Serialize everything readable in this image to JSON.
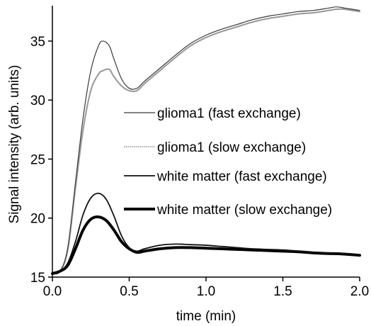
{
  "chart_data": {
    "type": "line",
    "title": "",
    "xlabel": "time (min)",
    "ylabel": "Signal intensity (arb. units)",
    "xlim": [
      0.0,
      2.0
    ],
    "ylim": [
      15,
      38
    ],
    "x_ticks": [
      "0.0",
      "0.5",
      "1.0",
      "1.5",
      "2.0"
    ],
    "y_ticks": [
      "15",
      "20",
      "25",
      "30",
      "35"
    ],
    "grid": false,
    "legend_position": "center-right",
    "series": [
      {
        "name": "glioma1 (fast exchange)",
        "color": "#3a3a3a",
        "style": "thin-solid",
        "x": [
          0.0,
          0.05,
          0.1,
          0.15,
          0.2,
          0.25,
          0.3,
          0.33,
          0.37,
          0.4,
          0.45,
          0.5,
          0.55,
          0.6,
          0.7,
          0.8,
          0.9,
          1.0,
          1.1,
          1.2,
          1.3,
          1.4,
          1.5,
          1.6,
          1.7,
          1.8,
          1.85,
          1.9,
          1.95,
          2.0
        ],
        "y": [
          15.3,
          15.5,
          17.5,
          23.0,
          28.5,
          32.5,
          34.6,
          35.0,
          34.6,
          33.5,
          31.8,
          31.0,
          31.0,
          31.6,
          32.7,
          33.8,
          34.8,
          35.5,
          36.0,
          36.4,
          36.8,
          37.1,
          37.3,
          37.5,
          37.6,
          37.8,
          37.9,
          37.8,
          37.7,
          37.6
        ]
      },
      {
        "name": "glioma1 (slow exchange)",
        "color": "#9a9a9a",
        "style": "dotted",
        "x": [
          0.0,
          0.05,
          0.1,
          0.15,
          0.2,
          0.25,
          0.3,
          0.33,
          0.37,
          0.4,
          0.45,
          0.5,
          0.55,
          0.6,
          0.7,
          0.8,
          0.9,
          1.0,
          1.1,
          1.2,
          1.3,
          1.4,
          1.5,
          1.6,
          1.7,
          1.8,
          1.85,
          1.9,
          1.95,
          2.0
        ],
        "y": [
          15.3,
          15.5,
          17.3,
          22.5,
          27.5,
          30.8,
          32.2,
          32.5,
          32.6,
          32.0,
          31.2,
          30.8,
          30.8,
          31.4,
          32.5,
          33.6,
          34.6,
          35.3,
          35.8,
          36.2,
          36.6,
          36.9,
          37.1,
          37.3,
          37.4,
          37.6,
          37.7,
          37.7,
          37.6,
          37.5
        ]
      },
      {
        "name": "white matter (fast exchange)",
        "color": "#111111",
        "style": "solid",
        "x": [
          0.0,
          0.05,
          0.1,
          0.15,
          0.2,
          0.25,
          0.3,
          0.35,
          0.4,
          0.45,
          0.5,
          0.55,
          0.6,
          0.7,
          0.8,
          0.9,
          1.0,
          1.1,
          1.2,
          1.3,
          1.4,
          1.5,
          1.6,
          1.7,
          1.8,
          1.9,
          2.0
        ],
        "y": [
          15.3,
          15.5,
          16.2,
          18.0,
          20.3,
          21.7,
          22.1,
          21.6,
          20.2,
          18.5,
          17.5,
          17.2,
          17.4,
          17.7,
          17.8,
          17.75,
          17.7,
          17.6,
          17.5,
          17.4,
          17.35,
          17.3,
          17.2,
          17.1,
          17.05,
          17.0,
          16.9
        ]
      },
      {
        "name": "white matter (slow exchange)",
        "color": "#000000",
        "style": "thick-solid",
        "x": [
          0.0,
          0.05,
          0.1,
          0.15,
          0.2,
          0.25,
          0.3,
          0.35,
          0.4,
          0.45,
          0.5,
          0.55,
          0.6,
          0.7,
          0.8,
          0.9,
          1.0,
          1.1,
          1.2,
          1.3,
          1.4,
          1.5,
          1.6,
          1.7,
          1.8,
          1.9,
          2.0
        ],
        "y": [
          15.3,
          15.5,
          16.0,
          17.4,
          19.0,
          19.9,
          20.1,
          19.8,
          19.0,
          18.0,
          17.4,
          17.1,
          17.2,
          17.4,
          17.5,
          17.5,
          17.45,
          17.4,
          17.35,
          17.3,
          17.25,
          17.2,
          17.15,
          17.05,
          17.0,
          16.95,
          16.85
        ]
      }
    ]
  }
}
